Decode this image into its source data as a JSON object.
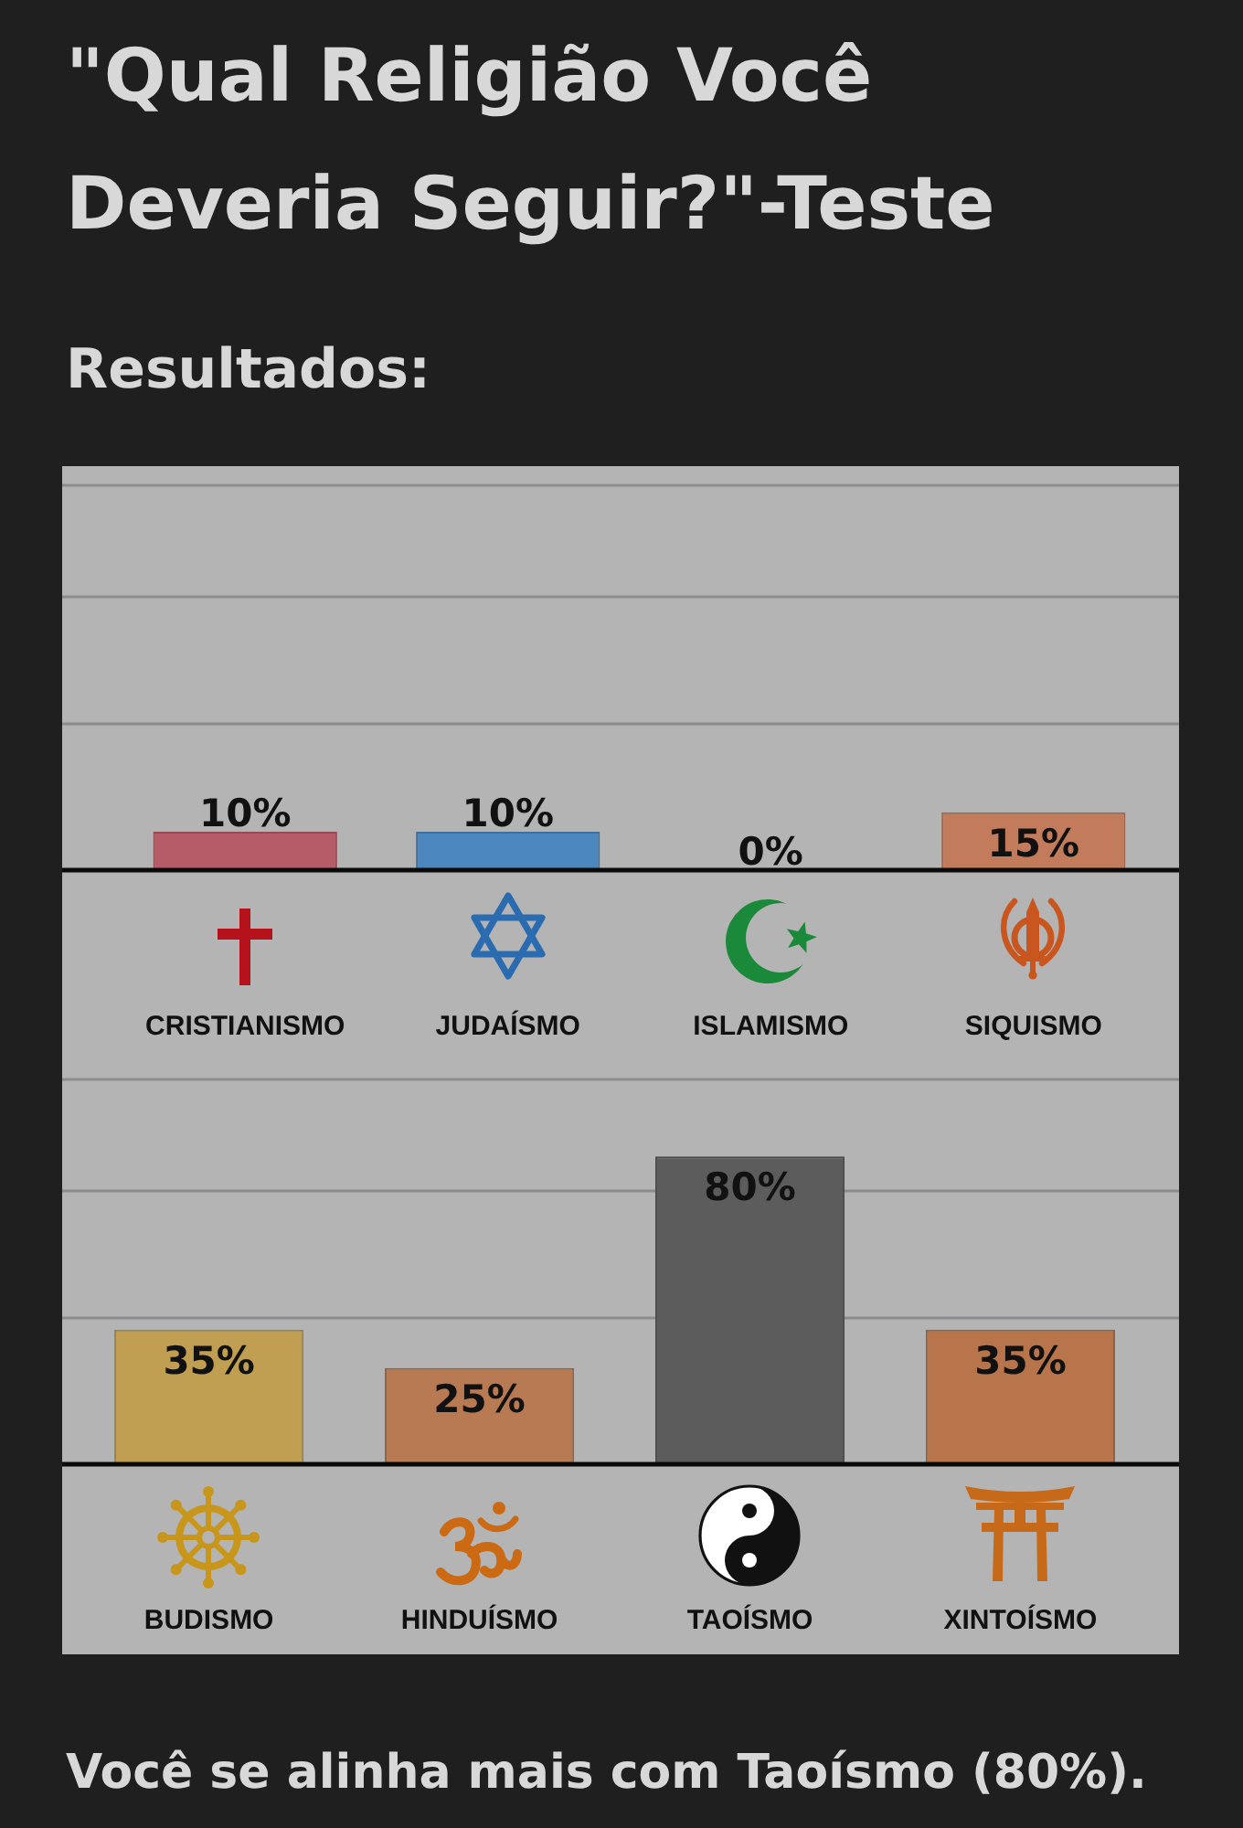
{
  "chart_data": [
    {
      "type": "bar",
      "title": "\"Qual Religião Você Deveria Seguir?\"-Teste",
      "subtitle": "Resultados:",
      "categories": [
        "CRISTIANISMO",
        "JUDAÍSMO",
        "ISLAMISMO",
        "SIQUISMO"
      ],
      "values": [
        10,
        10,
        0,
        15
      ],
      "value_labels": [
        "10%",
        "10%",
        "0%",
        "15%"
      ],
      "colors": [
        "#b65c68",
        "#4c88be",
        "#2e8b47",
        "#c27c5c"
      ],
      "ylim": [
        0,
        105
      ],
      "yticks": [
        {
          "value": 38,
          "label": null
        },
        {
          "value": 71,
          "label": null
        },
        {
          "value": 100,
          "label": null
        }
      ],
      "grid": true,
      "tick_labels": "x"
    },
    {
      "type": "bar",
      "categories": [
        "BUDISMO",
        "HINDUÍSMO",
        "TAOÍSMO",
        "XINTOÍSMO"
      ],
      "values": [
        35,
        25,
        80,
        35
      ],
      "value_labels": [
        "35%",
        "25%",
        "80%",
        "35%"
      ],
      "colors": [
        "#c09e52",
        "#b87a52",
        "#5c5c5c",
        "#b8744a"
      ],
      "ylim": [
        0,
        105
      ],
      "yticks": [
        {
          "value": 38,
          "label": null
        },
        {
          "value": 71,
          "label": null
        },
        {
          "value": 100,
          "label": null
        }
      ],
      "grid": true,
      "tick_labels": "x",
      "annotations": [
        "Você se alinha mais com Taoísmo (80%)."
      ]
    }
  ]
}
